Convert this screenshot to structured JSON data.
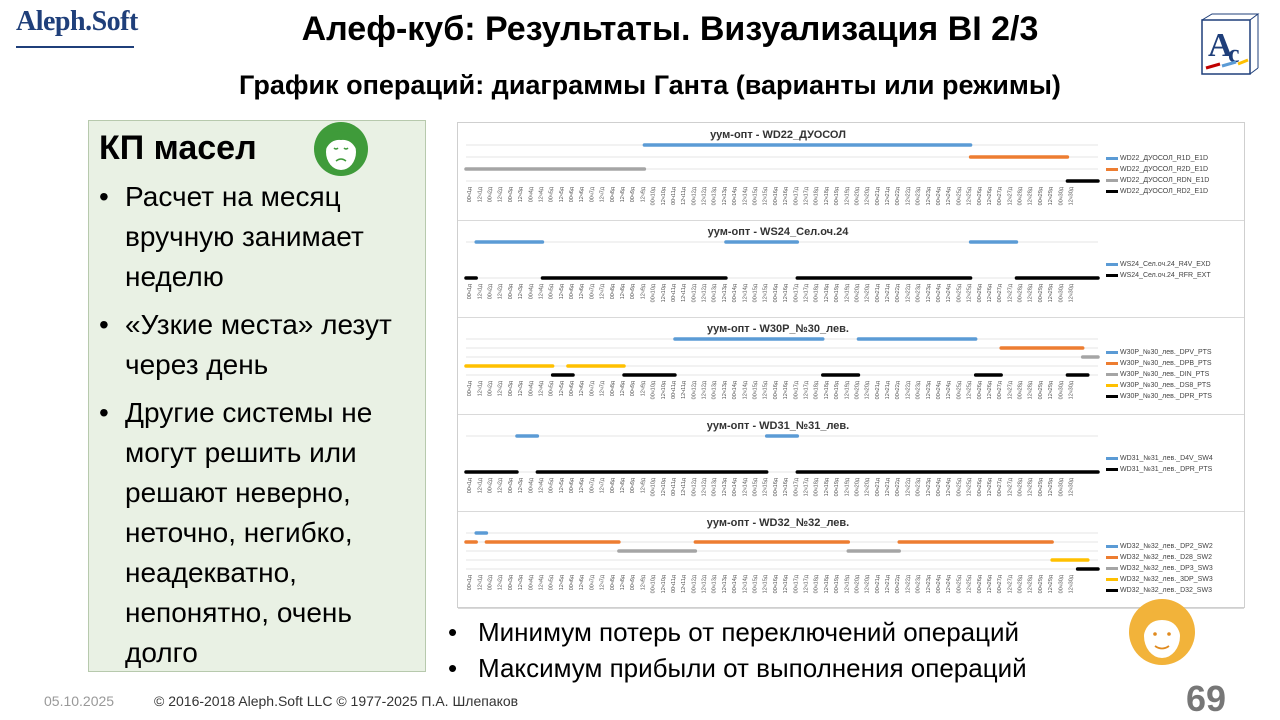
{
  "header": {
    "logo_text": "Aleph.Soft",
    "title": "Алеф-куб: Результаты. Визуализация BI 2/3",
    "subtitle": "График операций: диаграммы Ганта (варианты или режимы)",
    "corner_logo": "AC-logo"
  },
  "left_panel": {
    "title": "КП масел",
    "bullets": [
      "Расчет на месяц вручную занимает неделю",
      "«Узкие места» лезут через день",
      "Другие системы не могут решить или решают неверно, неточно, негибко, неадекватно, непонятно, очень долго"
    ]
  },
  "bottom_bullets": [
    "Минимум потерь от переключений операций",
    "Максимум прибыли от выполнения операций"
  ],
  "footer": {
    "date": "05.10.2025",
    "copyright": "© 2016-2018 Aleph.Soft LLC © 1977-2025 П.А. Шлепаков",
    "page_number": "69"
  },
  "colors": {
    "blue": "#5b9bd5",
    "orange": "#ed7d31",
    "gray": "#a5a5a5",
    "yellow": "#ffc000",
    "black": "#000000",
    "panel_bg": "#e9f1e4",
    "logo_blue": "#1f3f7a"
  },
  "icons": {
    "girl": "sad-girl-icon",
    "woman": "smiling-woman-icon"
  },
  "chart_data": [
    {
      "type": "gantt",
      "title": "уум-опт - WD22_ДУОСОЛ",
      "x_ticks": [
        "00ч1д",
        "12ч1д",
        "00ч2д",
        "12ч2д",
        "00ч3д",
        "12ч3д",
        "00ч4д",
        "12ч4д",
        "00ч5д",
        "12ч5д",
        "00ч6д",
        "12ч6д",
        "00ч7д",
        "12ч7д",
        "00ч8д",
        "12ч8д",
        "00ч9д",
        "12ч9д",
        "00ч10д",
        "12ч10д",
        "00ч11д",
        "12ч11д",
        "00ч12д",
        "12ч12д",
        "00ч13д",
        "12ч13д",
        "00ч14д",
        "12ч14д",
        "00ч15д",
        "12ч15д",
        "00ч16д",
        "12ч16д",
        "00ч17д",
        "12ч17д",
        "00ч18д",
        "12ч18д",
        "00ч19д",
        "12ч19д",
        "00ч20д",
        "12ч20д",
        "00ч21д",
        "12ч21д",
        "00ч22д",
        "12ч22д",
        "00ч23д",
        "12ч23д",
        "00ч24д",
        "12ч24д",
        "00ч25д",
        "12ч25д",
        "00ч26д",
        "12ч26д",
        "00ч27д",
        "12ч27д",
        "00ч28д",
        "12ч28д",
        "00ч29д",
        "12ч29д",
        "00ч30д",
        "12ч30д"
      ],
      "series": [
        {
          "name": "WD22_ДУОСОЛ_R1D_E1D",
          "color": "blue",
          "segments": [
            [
              17.5,
              49.5
            ]
          ]
        },
        {
          "name": "WD22_ДУОСОЛ_R2D_E1D",
          "color": "orange",
          "segments": [
            [
              49.5,
              59
            ]
          ]
        },
        {
          "name": "WD22_ДУОСОЛ_RDN_E1D",
          "color": "gray",
          "segments": [
            [
              0,
              17.5
            ]
          ]
        },
        {
          "name": "WD22_ДУОСОЛ_RD2_E1D",
          "color": "black",
          "segments": [
            [
              59,
              62
            ]
          ]
        }
      ]
    },
    {
      "type": "gantt",
      "title": "уум-опт - WS24_Сел.оч.24",
      "series": [
        {
          "name": "WS24_Сел.оч.24_R4V_EXD",
          "color": "blue",
          "segments": [
            [
              1,
              7.5
            ],
            [
              25.5,
              32.5
            ],
            [
              49.5,
              54
            ]
          ]
        },
        {
          "name": "WS24_Сел.оч.24_RFR_EXT",
          "color": "black",
          "segments": [
            [
              0,
              1
            ],
            [
              7.5,
              25.5
            ],
            [
              32.5,
              49.5
            ],
            [
              54,
              62
            ]
          ]
        }
      ]
    },
    {
      "type": "gantt",
      "title": "уум-опт - W30P_№30_лев.",
      "series": [
        {
          "name": "W30P_№30_лев._DPV_PTS",
          "color": "blue",
          "segments": [
            [
              20.5,
              35
            ],
            [
              38.5,
              50
            ]
          ]
        },
        {
          "name": "W30P_№30_лев._DPB_PTS",
          "color": "orange",
          "segments": [
            [
              52.5,
              60.5
            ]
          ]
        },
        {
          "name": "W30P_№30_лев._DIN_PTS",
          "color": "gray",
          "segments": [
            [
              60.5,
              62
            ]
          ]
        },
        {
          "name": "W30P_№30_лев._DS8_PTS",
          "color": "yellow",
          "segments": [
            [
              0,
              8.5
            ],
            [
              10,
              15.5
            ]
          ]
        },
        {
          "name": "W30P_№30_лев._DPR_PTS",
          "color": "black",
          "segments": [
            [
              8.5,
              10.5
            ],
            [
              15.5,
              20.5
            ],
            [
              35,
              38.5
            ],
            [
              50,
              52.5
            ],
            [
              59,
              61
            ]
          ]
        }
      ]
    },
    {
      "type": "gantt",
      "title": "уум-опт - WD31_№31_лев.",
      "series": [
        {
          "name": "WD31_№31_лев._D4V_SW4",
          "color": "blue",
          "segments": [
            [
              5,
              7
            ],
            [
              29.5,
              32.5
            ]
          ]
        },
        {
          "name": "WD31_№31_лев._DPR_PTS",
          "color": "black",
          "segments": [
            [
              0,
              5
            ],
            [
              7,
              29.5
            ],
            [
              32.5,
              62
            ]
          ]
        }
      ]
    },
    {
      "type": "gantt",
      "title": "уум-опт - WD32_№32_лев.",
      "series": [
        {
          "name": "WD32_№32_лев._DP2_SW2",
          "color": "blue",
          "segments": [
            [
              1,
              2
            ]
          ]
        },
        {
          "name": "WD32_№32_лев._D28_SW2",
          "color": "orange",
          "segments": [
            [
              0,
              1
            ],
            [
              2,
              15
            ],
            [
              22.5,
              37.5
            ],
            [
              42.5,
              57.5
            ]
          ]
        },
        {
          "name": "WD32_№32_лев._DP3_SW3",
          "color": "gray",
          "segments": [
            [
              15,
              22.5
            ],
            [
              37.5,
              42.5
            ]
          ]
        },
        {
          "name": "WD32_№32_лев._3DP_SW3",
          "color": "yellow",
          "segments": [
            [
              57.5,
              61
            ]
          ]
        },
        {
          "name": "WD32_№32_лев._D32_SW3",
          "color": "black",
          "segments": [
            [
              60,
              62
            ]
          ]
        }
      ]
    }
  ]
}
